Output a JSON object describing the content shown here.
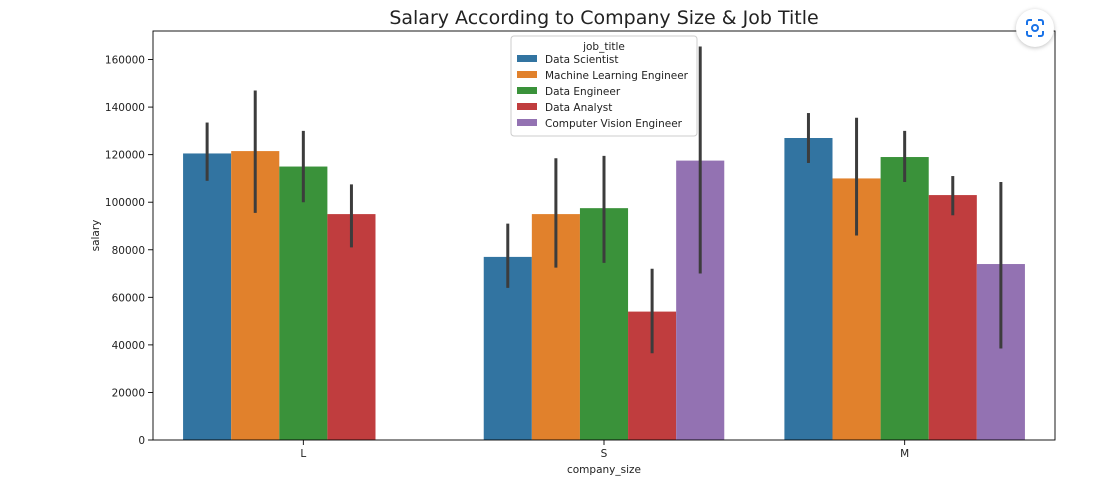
{
  "chart_data": {
    "type": "bar",
    "title": "Salary According to Company Size & Job Title",
    "xlabel": "company_size",
    "ylabel": "salary",
    "ylim": [
      0,
      172000
    ],
    "yticks": [
      0,
      20000,
      40000,
      60000,
      80000,
      100000,
      120000,
      140000,
      160000
    ],
    "categories": [
      "L",
      "S",
      "M"
    ],
    "legend": {
      "title": "job_title",
      "placement": "top-center"
    },
    "grid": false,
    "series": [
      {
        "name": "Data Scientist",
        "color": "#3274a1",
        "values": [
          120500,
          77000,
          127000
        ],
        "ci_low": [
          109000,
          64000,
          116500
        ],
        "ci_high": [
          133500,
          91000,
          137500
        ]
      },
      {
        "name": "Machine Learning Engineer",
        "color": "#e1812c",
        "values": [
          121500,
          95000,
          110000
        ],
        "ci_low": [
          95500,
          72500,
          86000
        ],
        "ci_high": [
          147000,
          118500,
          135500
        ]
      },
      {
        "name": "Data Engineer",
        "color": "#3a923a",
        "values": [
          115000,
          97500,
          119000
        ],
        "ci_low": [
          100000,
          74500,
          108500
        ],
        "ci_high": [
          130000,
          119500,
          130000
        ]
      },
      {
        "name": "Data Analyst",
        "color": "#c03d3e",
        "values": [
          95000,
          54000,
          103000
        ],
        "ci_low": [
          81000,
          36500,
          94500
        ],
        "ci_high": [
          107500,
          72000,
          111000
        ]
      },
      {
        "name": "Computer Vision Engineer",
        "color": "#9372b2",
        "values": [
          null,
          117500,
          74000
        ],
        "ci_low": [
          null,
          70000,
          38500
        ],
        "ci_high": [
          null,
          165500,
          108500
        ]
      }
    ]
  },
  "ui": {
    "lens_icon": "google-lens-icon"
  }
}
